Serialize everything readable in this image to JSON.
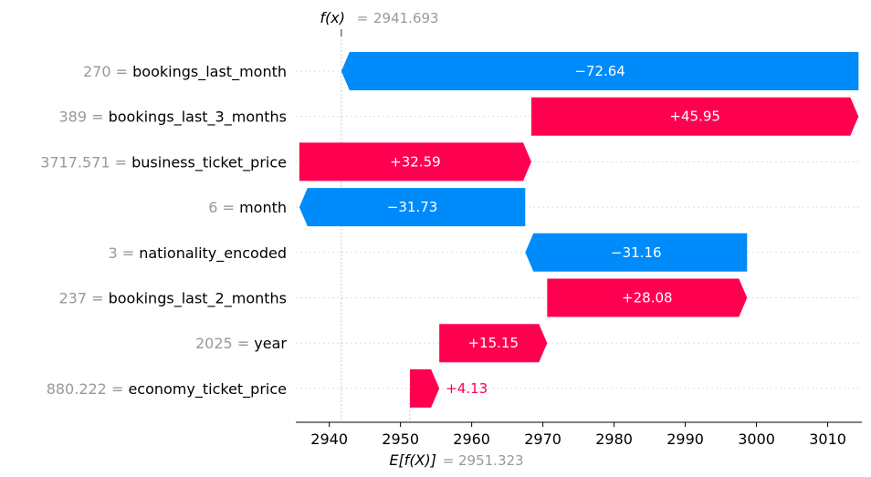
{
  "chart_data": {
    "type": "waterfall",
    "fx_label": "f(x)",
    "fx_value": "2941.693",
    "efx_label": "E[f(X)]",
    "efx_value": "2951.323",
    "base_value": 2951.323,
    "final_value": 2941.693,
    "xlim": [
      2935.3,
      3014.8
    ],
    "xticks": [
      2940,
      2950,
      2960,
      2970,
      2980,
      2990,
      3000,
      3010
    ],
    "features": [
      {
        "value": "270",
        "name": "bookings_last_month",
        "contribution": -72.64,
        "label": "−72.64"
      },
      {
        "value": "389",
        "name": "bookings_last_3_months",
        "contribution": 45.95,
        "label": "+45.95"
      },
      {
        "value": "3717.571",
        "name": "business_ticket_price",
        "contribution": 32.59,
        "label": "+32.59"
      },
      {
        "value": "6",
        "name": "month",
        "contribution": -31.73,
        "label": "−31.73"
      },
      {
        "value": "3",
        "name": "nationality_encoded",
        "contribution": -31.16,
        "label": "−31.16"
      },
      {
        "value": "237",
        "name": "bookings_last_2_months",
        "contribution": 28.08,
        "label": "+28.08"
      },
      {
        "value": "2025",
        "name": "year",
        "contribution": 15.15,
        "label": "+15.15"
      },
      {
        "value": "880.222",
        "name": "economy_ticket_price",
        "contribution": 4.13,
        "label": "+4.13"
      }
    ],
    "colors": {
      "positive": "#ff0051",
      "negative": "#008bfb"
    }
  }
}
